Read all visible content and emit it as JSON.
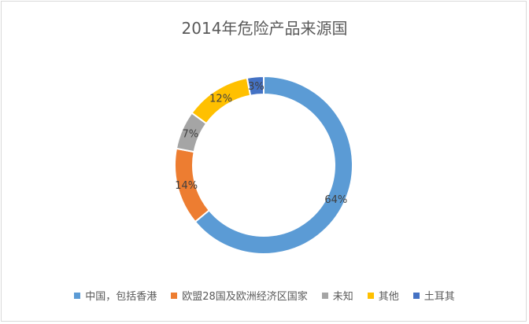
{
  "chart_data": {
    "type": "pie",
    "donut": true,
    "title": "2014年危险产品来源国",
    "categories": [
      "中国，包括香港",
      "欧盟28国及欧洲经济区国家",
      "未知",
      "其他",
      "土耳其"
    ],
    "values": [
      64,
      14,
      7,
      12,
      3
    ],
    "data_labels": [
      "64%",
      "14%",
      "7%",
      "12%",
      "3%"
    ],
    "colors": [
      "#5b9bd5",
      "#ed7d31",
      "#a5a5a5",
      "#ffc000",
      "#4472c4"
    ],
    "legend_position": "bottom"
  }
}
